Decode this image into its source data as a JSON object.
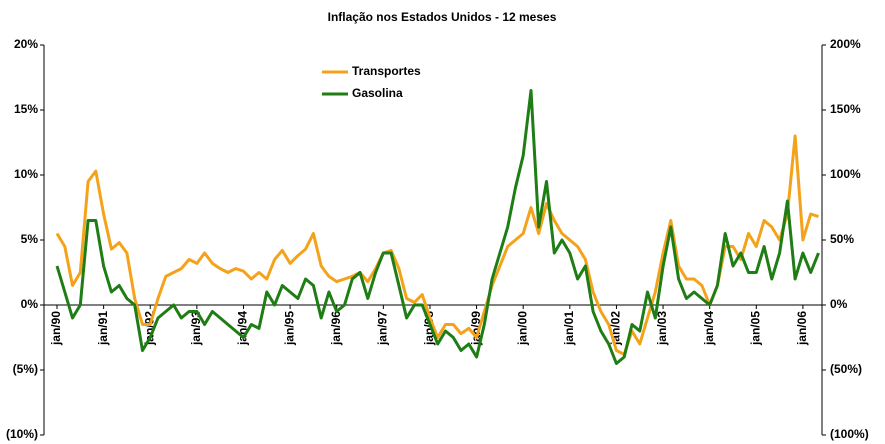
{
  "chart_data": {
    "type": "line",
    "title": "Inflação nos Estados Unidos - 12 meses",
    "categories": [
      "jan/90",
      null,
      null,
      null,
      null,
      null,
      "jan/91",
      null,
      null,
      null,
      null,
      null,
      "jan/92",
      null,
      null,
      null,
      null,
      null,
      "jan/93",
      null,
      null,
      null,
      null,
      null,
      "jan/94",
      null,
      null,
      null,
      null,
      null,
      "jan/95",
      null,
      null,
      null,
      null,
      null,
      "jan/96",
      null,
      null,
      null,
      null,
      null,
      "jan/97",
      null,
      null,
      null,
      null,
      null,
      "jan/98",
      null,
      null,
      null,
      null,
      null,
      "jan/99",
      null,
      null,
      null,
      null,
      null,
      "jan/00",
      null,
      null,
      null,
      null,
      null,
      "jan/01",
      null,
      null,
      null,
      null,
      null,
      "jan/02",
      null,
      null,
      null,
      null,
      null,
      "jan/03",
      null,
      null,
      null,
      null,
      null,
      "jan/04",
      null,
      null,
      null,
      null,
      null,
      "jan/05",
      null,
      null,
      null,
      null,
      null,
      "jan/06",
      null,
      null
    ],
    "series": [
      {
        "name": "Transportes",
        "color": "#f5a21b",
        "axis": "y",
        "values": [
          5.5,
          4.5,
          1.5,
          2.5,
          9.5,
          10.3,
          7,
          4.3,
          4.8,
          4,
          0.5,
          -1.5,
          -1.5,
          0.5,
          2.2,
          2.5,
          2.8,
          3.5,
          3.2,
          4,
          3.2,
          2.8,
          2.5,
          2.8,
          2.6,
          2,
          2.5,
          2,
          3.5,
          4.2,
          3.2,
          3.8,
          4.3,
          5.5,
          3,
          2.2,
          1.8,
          2,
          2.2,
          2.5,
          1.8,
          2.8,
          4,
          4.2,
          2.8,
          0.5,
          0.2,
          0.8,
          -1,
          -2.5,
          -1.5,
          -1.5,
          -2.2,
          -1.8,
          -2.5,
          -0.5,
          1.5,
          3,
          4.5,
          5,
          5.5,
          7.5,
          5.5,
          7.8,
          6.5,
          5.5,
          5,
          4.5,
          3.5,
          1,
          -0.5,
          -1.5,
          -3.5,
          -3.8,
          -2,
          -3,
          -1,
          1,
          4,
          6.5,
          3,
          2,
          2,
          1.5,
          0,
          1.5,
          4.5,
          4.5,
          3.5,
          5.5,
          4.5,
          6.5,
          6,
          5,
          7,
          13,
          5,
          7,
          6.8
        ]
      },
      {
        "name": "Gasolina",
        "color": "#1e7d14",
        "axis": "y2",
        "values": [
          30,
          10,
          -10,
          0,
          65,
          65,
          30,
          10,
          15,
          5,
          0,
          -35,
          -25,
          -10,
          -5,
          0,
          -10,
          -5,
          -5,
          -15,
          -5,
          -10,
          -15,
          -20,
          -25,
          -15,
          -18,
          10,
          0,
          15,
          10,
          5,
          20,
          15,
          -10,
          10,
          -5,
          0,
          20,
          25,
          5,
          25,
          40,
          40,
          15,
          -10,
          0,
          0,
          -15,
          -30,
          -20,
          -25,
          -35,
          -30,
          -40,
          -15,
          20,
          40,
          60,
          90,
          115,
          165,
          60,
          95,
          40,
          50,
          40,
          20,
          30,
          -5,
          -20,
          -30,
          -45,
          -40,
          -15,
          -20,
          10,
          -10,
          30,
          60,
          20,
          5,
          10,
          5,
          0,
          15,
          55,
          30,
          40,
          25,
          25,
          45,
          20,
          40,
          80,
          20,
          40,
          25,
          40
        ]
      }
    ],
    "ylim": [
      -10,
      20
    ],
    "yticks": [
      {
        "value": 20,
        "label": "20%"
      },
      {
        "value": 15,
        "label": "15%"
      },
      {
        "value": 10,
        "label": "10%"
      },
      {
        "value": 5,
        "label": "5%"
      },
      {
        "value": 0,
        "label": "0%"
      },
      {
        "value": -5,
        "label": "(5%)"
      },
      {
        "value": -10,
        "label": "(10%)"
      }
    ],
    "y2lim": [
      -100,
      200
    ],
    "y2ticks": [
      {
        "value": 200,
        "label": "200%"
      },
      {
        "value": 150,
        "label": "150%"
      },
      {
        "value": 100,
        "label": "100%"
      },
      {
        "value": 50,
        "label": "50%"
      },
      {
        "value": 0,
        "label": "0%"
      },
      {
        "value": -50,
        "label": "(50%)"
      },
      {
        "value": -100,
        "label": "(100%)"
      }
    ]
  }
}
